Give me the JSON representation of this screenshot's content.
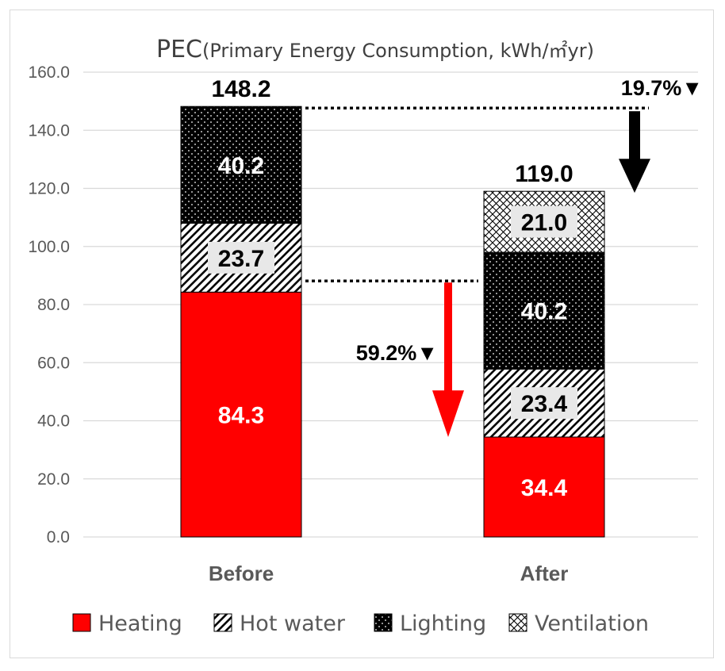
{
  "chart_data": {
    "type": "bar",
    "stacked": true,
    "title": "PEC",
    "title_sub": "(Primary Energy Consumption, kWh/㎡yr)",
    "categories": [
      "Before",
      "After"
    ],
    "ylim": [
      0,
      160
    ],
    "y_ticks": [
      "0.0",
      "20.0",
      "40.0",
      "60.0",
      "80.0",
      "100.0",
      "120.0",
      "140.0",
      "160.0"
    ],
    "grid": true,
    "legend_position": "bottom",
    "series": [
      {
        "name": "Heating",
        "values": [
          84.3,
          34.4
        ],
        "labels": [
          "84.3",
          "34.4"
        ],
        "color": "#ff0000",
        "pattern": "solid"
      },
      {
        "name": "Hot water",
        "values": [
          23.7,
          23.4
        ],
        "labels": [
          "23.7",
          "23.4"
        ],
        "color": "#000000",
        "pattern": "diagonal"
      },
      {
        "name": "Lighting",
        "values": [
          40.2,
          40.2
        ],
        "labels": [
          "40.2",
          "40.2"
        ],
        "color": "#000000",
        "pattern": "dots"
      },
      {
        "name": "Ventilation",
        "values": [
          0,
          21.0
        ],
        "labels": [
          "",
          "21.0"
        ],
        "color": "#000000",
        "pattern": "crosshatch"
      }
    ],
    "totals": [
      "148.2",
      "119.0"
    ],
    "annotations": {
      "total_reduction": {
        "text": "19.7%▼",
        "from": 148.2,
        "to": 119.0,
        "color": "#000000"
      },
      "heating_reduction": {
        "text": "59.2%▼",
        "from": 84.3,
        "to": 34.4,
        "color": "#ff0000"
      }
    }
  }
}
